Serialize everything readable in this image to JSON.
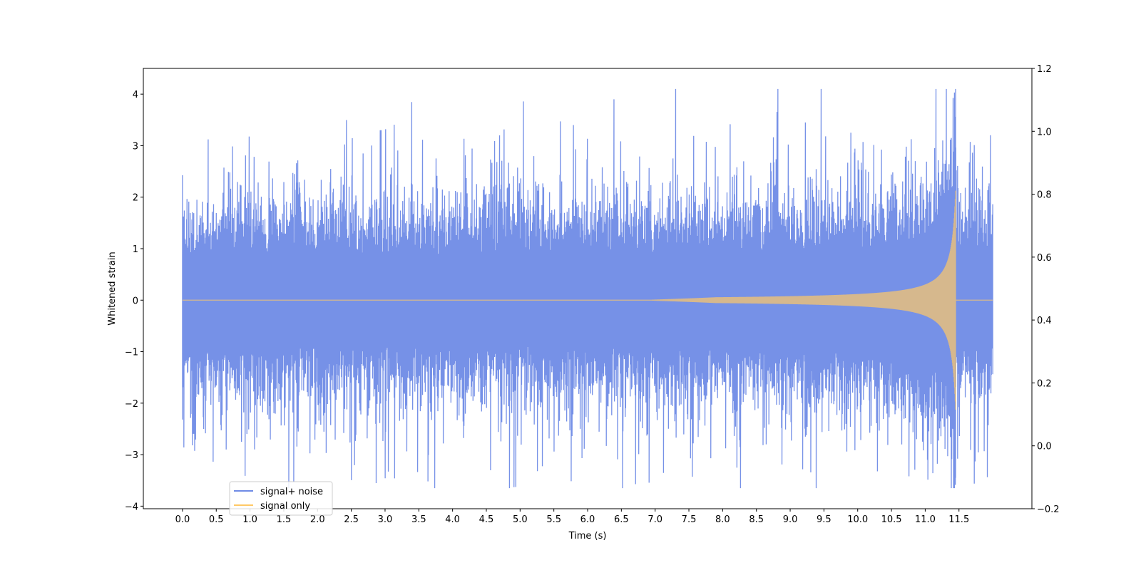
{
  "chart_data": {
    "type": "line",
    "title": "",
    "xlabel": "Time (s)",
    "ylabel": "Whitened strain",
    "y2label": "",
    "xlim": [
      -0.58,
      12.58
    ],
    "ylim": [
      -4.05,
      4.5
    ],
    "y2lim": [
      -0.2,
      1.2
    ],
    "x_ticks": [
      0.0,
      0.5,
      1.0,
      1.5,
      2.0,
      2.5,
      3.0,
      3.5,
      4.0,
      4.5,
      5.0,
      5.5,
      6.0,
      6.5,
      7.0,
      7.5,
      8.0,
      8.5,
      9.0,
      9.5,
      10.0,
      10.5,
      11.0,
      11.5
    ],
    "x_tick_labels": [
      "0.0",
      "0.5",
      "1.0",
      "1.5",
      "2.0",
      "2.5",
      "3.0",
      "3.5",
      "4.0",
      "4.5",
      "5.0",
      "5.5",
      "6.0",
      "6.5",
      "7.0",
      "7.5",
      "8.0",
      "8.5",
      "9.0",
      "9.5",
      "10.0",
      "10.5",
      "11.0",
      "11.5"
    ],
    "y_ticks": [
      -4,
      -3,
      -2,
      -1,
      0,
      1,
      2,
      3,
      4
    ],
    "y_tick_labels": [
      "−4",
      "−3",
      "−2",
      "−1",
      "0",
      "1",
      "2",
      "3",
      "4"
    ],
    "y2_ticks": [
      -0.2,
      0.0,
      0.2,
      0.4,
      0.6,
      0.8,
      1.0,
      1.2
    ],
    "y2_tick_labels": [
      "−0.2",
      "0.0",
      "0.2",
      "0.4",
      "0.6",
      "0.8",
      "1.0",
      "1.2"
    ],
    "grid": false,
    "legend_position": "lower-left",
    "series": [
      {
        "name": "signal+ noise",
        "color": "#6f8be6",
        "x_range": [
          0.0,
          12.0
        ],
        "approx_std": 1.0,
        "approx_min": -3.65,
        "approx_max": 4.1,
        "peak_time": 11.45
      },
      {
        "name": "signal only",
        "color": "#ffc966",
        "x_range": [
          0.0,
          12.0
        ],
        "chirp_onset": 7.0,
        "merger_time": 11.45,
        "peak_amplitude": 2.8
      }
    ]
  }
}
